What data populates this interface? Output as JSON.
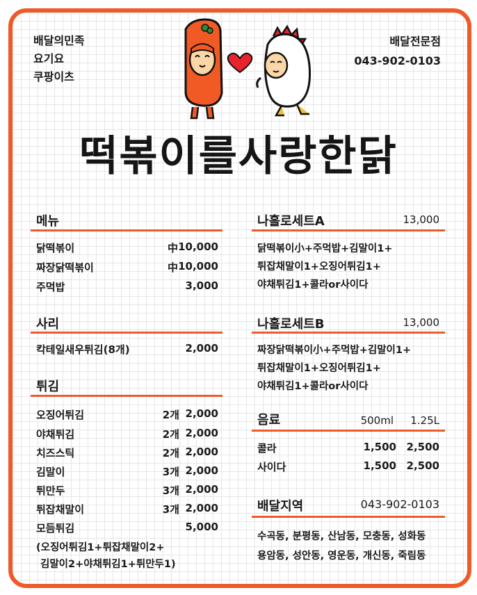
{
  "apps": [
    "배달의민족",
    "요기요",
    "쿠팡이츠"
  ],
  "contact": {
    "label": "배달전문점",
    "phone": "043-902-0103"
  },
  "brand": "떡볶이를사랑한닭",
  "menu": {
    "title": "메뉴",
    "items": [
      {
        "name": "닭떡볶이",
        "qty": "中",
        "price": "10,000"
      },
      {
        "name": "짜장닭떡볶이",
        "qty": "中",
        "price": "10,000"
      },
      {
        "name": "주먹밥",
        "qty": "",
        "price": "3,000"
      }
    ]
  },
  "sari": {
    "title": "사리",
    "items": [
      {
        "name": "칵테일새우튀김(8개)",
        "qty": "",
        "price": "2,000"
      }
    ]
  },
  "twigim": {
    "title": "튀김",
    "items": [
      {
        "name": "오징어튀김",
        "qty": "2개",
        "price": "2,000"
      },
      {
        "name": "야채튀김",
        "qty": "2개",
        "price": "2,000"
      },
      {
        "name": "치즈스틱",
        "qty": "2개",
        "price": "2,000"
      },
      {
        "name": "김말이",
        "qty": "3개",
        "price": "2,000"
      },
      {
        "name": "튀만두",
        "qty": "3개",
        "price": "2,000"
      },
      {
        "name": "튀잡채말이",
        "qty": "3개",
        "price": "2,000"
      },
      {
        "name": "모듬튀김",
        "qty": "",
        "price": "5,000"
      }
    ],
    "note_line1": "(오징어튀김1+튀잡채말이2+",
    "note_line2": "김말이2+야채튀김1+튀만두1)"
  },
  "set_a": {
    "title": "나홀로세트A",
    "price": "13,000",
    "lines": [
      "닭떡볶이小+주먹밥+김말이1+",
      "튀잡채말이1+오징어튀김1+",
      "야채튀김1+콜라or사이다"
    ]
  },
  "set_b": {
    "title": "나홀로세트B",
    "price": "13,000",
    "lines": [
      "짜장닭떡볶이小+주먹밥+김말이1+",
      "튀잡채말이1+오징어튀김1+",
      "야채튀김1+콜라or사이다"
    ]
  },
  "drinks": {
    "title": "음료",
    "sizes": [
      "500ml",
      "1.25L"
    ],
    "items": [
      {
        "name": "콜라",
        "small": "1,500",
        "large": "2,500"
      },
      {
        "name": "사이다",
        "small": "1,500",
        "large": "2,500"
      }
    ]
  },
  "delivery": {
    "title": "배달지역",
    "phone": "043-902-0103",
    "areas_line1": "수곡동, 분평동, 산남동, 모충동, 성화동",
    "areas_line2": "용암동, 성안동, 영운동, 개신동, 죽림동"
  },
  "colors": {
    "accent": "#ee5a2a",
    "text": "#1a1a1a",
    "grid": "#e6e6e6"
  }
}
